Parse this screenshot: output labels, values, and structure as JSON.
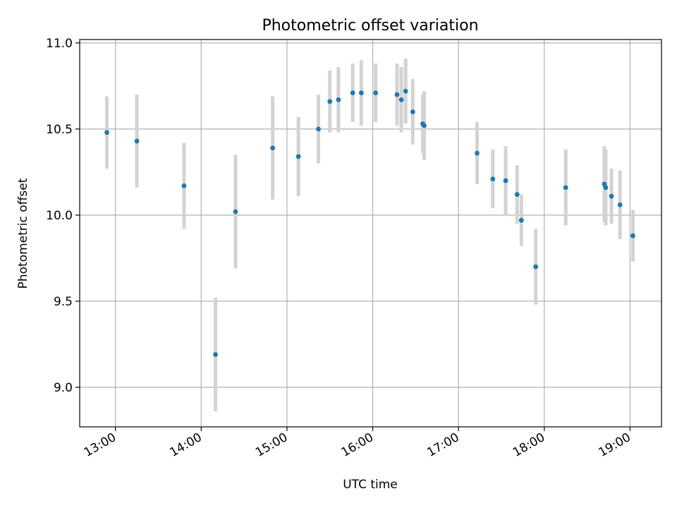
{
  "chart_data": {
    "type": "scatter",
    "title": "Photometric offset variation",
    "xlabel": "UTC time",
    "ylabel": "Photometric offset",
    "x_tick_labels": [
      "13:00",
      "14:00",
      "15:00",
      "16:00",
      "17:00",
      "18:00",
      "19:00"
    ],
    "y_tick_labels": [
      "9.0",
      "9.5",
      "10.0",
      "10.5",
      "11.0"
    ],
    "y_ticks": [
      9.0,
      9.5,
      10.0,
      10.5,
      11.0
    ],
    "xlim": [
      "12:35",
      "19:22"
    ],
    "ylim": [
      8.77,
      11.02
    ],
    "grid": true,
    "colors": {
      "marker": "#1f77b4",
      "errorbar": "#d3d3d3",
      "grid": "#b0b0b0"
    },
    "points": [
      {
        "x": "12:54",
        "y": 10.48,
        "yerr": 0.21
      },
      {
        "x": "13:15",
        "y": 10.43,
        "yerr": 0.27
      },
      {
        "x": "13:48",
        "y": 10.17,
        "yerr": 0.25
      },
      {
        "x": "14:10",
        "y": 9.19,
        "yerr": 0.33
      },
      {
        "x": "14:24",
        "y": 10.02,
        "yerr": 0.33
      },
      {
        "x": "14:50",
        "y": 10.39,
        "yerr": 0.3
      },
      {
        "x": "15:08",
        "y": 10.34,
        "yerr": 0.23
      },
      {
        "x": "15:22",
        "y": 10.5,
        "yerr": 0.2
      },
      {
        "x": "15:30",
        "y": 10.66,
        "yerr": 0.18
      },
      {
        "x": "15:36",
        "y": 10.67,
        "yerr": 0.19
      },
      {
        "x": "15:46",
        "y": 10.71,
        "yerr": 0.17
      },
      {
        "x": "15:52",
        "y": 10.71,
        "yerr": 0.19
      },
      {
        "x": "16:02",
        "y": 10.71,
        "yerr": 0.17
      },
      {
        "x": "16:17",
        "y": 10.7,
        "yerr": 0.18
      },
      {
        "x": "16:20",
        "y": 10.67,
        "yerr": 0.19
      },
      {
        "x": "16:23",
        "y": 10.72,
        "yerr": 0.19
      },
      {
        "x": "16:28",
        "y": 10.6,
        "yerr": 0.19
      },
      {
        "x": "16:35",
        "y": 10.53,
        "yerr": 0.17
      },
      {
        "x": "16:36",
        "y": 10.52,
        "yerr": 0.2
      },
      {
        "x": "17:13",
        "y": 10.36,
        "yerr": 0.18
      },
      {
        "x": "17:24",
        "y": 10.21,
        "yerr": 0.17
      },
      {
        "x": "17:33",
        "y": 10.2,
        "yerr": 0.2
      },
      {
        "x": "17:41",
        "y": 10.12,
        "yerr": 0.17
      },
      {
        "x": "17:44",
        "y": 9.97,
        "yerr": 0.15
      },
      {
        "x": "17:54",
        "y": 9.7,
        "yerr": 0.22
      },
      {
        "x": "18:15",
        "y": 10.16,
        "yerr": 0.22
      },
      {
        "x": "18:42",
        "y": 10.18,
        "yerr": 0.22
      },
      {
        "x": "18:43",
        "y": 10.16,
        "yerr": 0.22
      },
      {
        "x": "18:47",
        "y": 10.11,
        "yerr": 0.16
      },
      {
        "x": "18:53",
        "y": 10.06,
        "yerr": 0.2
      },
      {
        "x": "19:02",
        "y": 9.88,
        "yerr": 0.15
      }
    ]
  }
}
